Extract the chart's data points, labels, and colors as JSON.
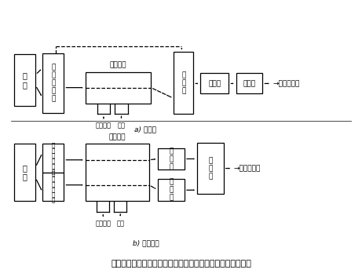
{
  "title": "図７　紫外線吸収法による大気中二酸化硫黄計測器の構成例",
  "label_a": "a) 分散形",
  "label_b": "b) 非分散形",
  "bg_color": "#ffffff",
  "box_edge": "#000000",
  "text_color": "#000000",
  "a_kougen": [
    0.03,
    0.62,
    0.06,
    0.19
  ],
  "a_kaiten": [
    0.11,
    0.595,
    0.06,
    0.22
  ],
  "a_cell": [
    0.23,
    0.63,
    0.185,
    0.115
  ],
  "a_bunkoki": [
    0.48,
    0.59,
    0.055,
    0.23
  ],
  "a_sokkou": [
    0.555,
    0.665,
    0.08,
    0.075
  ],
  "a_zoufuku": [
    0.655,
    0.665,
    0.075,
    0.075
  ],
  "b_kougen": [
    0.03,
    0.27,
    0.06,
    0.21
  ],
  "b_filter1": [
    0.11,
    0.375,
    0.06,
    0.105
  ],
  "b_filter2": [
    0.11,
    0.27,
    0.06,
    0.105
  ],
  "b_cell": [
    0.23,
    0.27,
    0.18,
    0.21
  ],
  "b_sokkou1": [
    0.435,
    0.385,
    0.075,
    0.08
  ],
  "b_sokkou2": [
    0.435,
    0.27,
    0.075,
    0.08
  ],
  "b_zoufuku": [
    0.545,
    0.295,
    0.075,
    0.19
  ],
  "fs_main": 7.0,
  "fs_small": 6.0,
  "fs_label": 6.5,
  "fs_title": 8.0
}
